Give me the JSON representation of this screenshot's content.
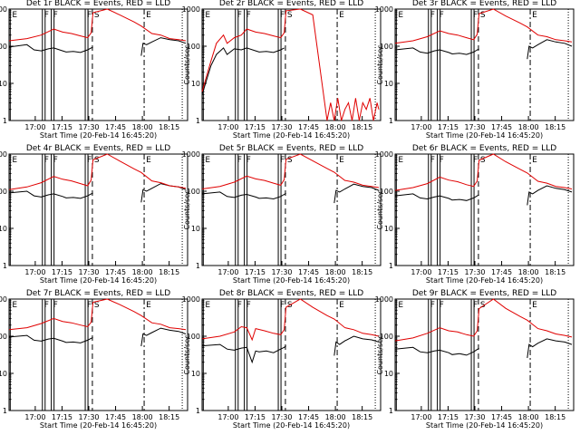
{
  "chart_data": {
    "type": "line",
    "shared": {
      "xlabel": "Start Time (20-Feb-14 16:45:20)",
      "ylabel": "Counts/sec",
      "yscale": "log",
      "ylim": [
        1,
        1000
      ],
      "y_tick_labels": [
        "1",
        "10",
        "100",
        "1000"
      ],
      "x_tick_labels": [
        "17:00",
        "17:15",
        "17:30",
        "17:45",
        "18:00",
        "18:15"
      ],
      "xlim_minutes_after_start": [
        0,
        100
      ],
      "x_tick_minutes_after_start": [
        14.67,
        29.67,
        44.67,
        59.67,
        74.67,
        89.67
      ],
      "series_colors": {
        "events": "#000000",
        "lld": "#e00000"
      },
      "markers": [
        {
          "label": "E",
          "time": "16:46"
        },
        {
          "label": "F",
          "time": "17:04"
        },
        {
          "label": "F",
          "time": "17:09"
        },
        {
          "label": "F",
          "time": "17:28"
        },
        {
          "label": "S",
          "time": "17:32"
        },
        {
          "label": "E",
          "time": "18:01"
        }
      ]
    },
    "panels": [
      {
        "title": "Det 1r BLACK = Events, RED = LLD",
        "series": [
          {
            "name": "Events",
            "color": "#000000",
            "x": [
              0,
              10,
              14,
              18,
              22,
              25,
              30,
              32,
              36,
              40,
              44,
              46,
              47,
              62,
              74,
              75,
              77,
              80,
              85,
              90,
              95,
              99
            ],
            "y": [
              95,
              110,
              80,
              75,
              85,
              90,
              75,
              70,
              72,
              68,
              80,
              90,
              95,
              null,
              55,
              120,
              110,
              130,
              170,
              150,
              140,
              120
            ]
          },
          {
            "name": "LLD",
            "color": "#e00000",
            "x": [
              0,
              10,
              18,
              25,
              30,
              35,
              40,
              44,
              46,
              47,
              55,
              62,
              70,
              74,
              80,
              85,
              90,
              95,
              99
            ],
            "y": [
              140,
              160,
              200,
              290,
              240,
              220,
              190,
              170,
              230,
              800,
              1000,
              700,
              450,
              350,
              220,
              200,
              160,
              150,
              140
            ]
          }
        ]
      },
      {
        "title": "Det 2r BLACK = Events, RED = LLD",
        "series": [
          {
            "name": "Events",
            "color": "#000000",
            "x": [
              0,
              5,
              8,
              12,
              14,
              18,
              22,
              25,
              30,
              32,
              36,
              40,
              44,
              46
            ],
            "y": [
              5,
              30,
              60,
              90,
              60,
              85,
              80,
              90,
              75,
              70,
              72,
              68,
              80,
              90
            ]
          },
          {
            "name": "LLD",
            "color": "#e00000",
            "x": [
              0,
              5,
              8,
              12,
              14,
              18,
              22,
              25,
              30,
              35,
              40,
              44,
              46,
              47,
              55,
              62,
              70,
              72,
              74,
              76,
              78,
              80,
              82,
              84,
              86,
              88,
              90,
              92,
              94,
              96,
              98,
              99
            ],
            "y": [
              6,
              40,
              120,
              200,
              120,
              170,
              200,
              290,
              240,
              220,
              190,
              170,
              230,
              900,
              1000,
              700,
              1,
              3,
              1,
              4,
              1,
              2,
              3,
              1,
              4,
              1,
              3,
              2,
              4,
              1,
              3,
              2
            ]
          }
        ]
      },
      {
        "title": "Det 3r BLACK = Events, RED = LLD",
        "series": [
          {
            "name": "Events",
            "color": "#000000",
            "x": [
              0,
              10,
              14,
              18,
              22,
              25,
              30,
              32,
              36,
              40,
              44,
              46,
              47,
              62,
              74,
              75,
              77,
              80,
              85,
              90,
              95,
              99
            ],
            "y": [
              80,
              90,
              70,
              65,
              75,
              80,
              68,
              62,
              65,
              60,
              70,
              80,
              85,
              null,
              45,
              100,
              90,
              110,
              150,
              130,
              120,
              100
            ]
          },
          {
            "name": "LLD",
            "color": "#e00000",
            "x": [
              0,
              10,
              18,
              25,
              30,
              35,
              40,
              44,
              46,
              47,
              55,
              62,
              70,
              74,
              80,
              85,
              90,
              95,
              99
            ],
            "y": [
              120,
              140,
              180,
              260,
              220,
              200,
              170,
              150,
              210,
              750,
              1000,
              650,
              420,
              330,
              200,
              180,
              150,
              140,
              130
            ]
          }
        ]
      },
      {
        "title": "Det 4r BLACK = Events, RED = LLD",
        "series": [
          {
            "name": "Events",
            "color": "#000000",
            "x": [
              0,
              10,
              14,
              18,
              22,
              25,
              30,
              32,
              36,
              40,
              44,
              46,
              47,
              62,
              74,
              75,
              77,
              80,
              85,
              90,
              95,
              99
            ],
            "y": [
              90,
              100,
              75,
              70,
              80,
              85,
              72,
              66,
              68,
              64,
              75,
              85,
              90,
              null,
              50,
              110,
              100,
              120,
              160,
              140,
              130,
              110
            ]
          },
          {
            "name": "LLD",
            "color": "#e00000",
            "x": [
              0,
              10,
              18,
              25,
              30,
              35,
              40,
              44,
              46,
              47,
              55,
              62,
              70,
              74,
              80,
              85,
              90,
              95,
              99
            ],
            "y": [
              110,
              130,
              170,
              250,
              210,
              190,
              160,
              140,
              200,
              700,
              1000,
              650,
              400,
              320,
              190,
              170,
              140,
              130,
              120
            ]
          }
        ]
      },
      {
        "title": "Det 5r BLACK = Events, RED = LLD",
        "series": [
          {
            "name": "Events",
            "color": "#000000",
            "x": [
              0,
              10,
              14,
              18,
              22,
              25,
              30,
              32,
              36,
              40,
              44,
              46,
              47,
              62,
              74,
              75,
              77,
              80,
              85,
              90,
              95,
              99
            ],
            "y": [
              85,
              95,
              72,
              68,
              78,
              82,
              70,
              64,
              66,
              62,
              72,
              82,
              88,
              null,
              48,
              105,
              95,
              115,
              155,
              135,
              125,
              105
            ]
          },
          {
            "name": "LLD",
            "color": "#e00000",
            "x": [
              0,
              10,
              18,
              25,
              30,
              35,
              40,
              44,
              46,
              47,
              55,
              62,
              70,
              74,
              80,
              85,
              90,
              95,
              99
            ],
            "y": [
              115,
              135,
              175,
              255,
              215,
              195,
              165,
              145,
              205,
              720,
              1000,
              660,
              410,
              325,
              195,
              175,
              145,
              135,
              125
            ]
          }
        ]
      },
      {
        "title": "Det 6r BLACK = Events, RED = LLD",
        "series": [
          {
            "name": "Events",
            "color": "#000000",
            "x": [
              0,
              10,
              14,
              18,
              22,
              25,
              30,
              32,
              36,
              40,
              44,
              46,
              47,
              62,
              74,
              75,
              77,
              80,
              85,
              90,
              95,
              99
            ],
            "y": [
              75,
              85,
              66,
              62,
              70,
              75,
              64,
              58,
              60,
              56,
              66,
              75,
              80,
              null,
              42,
              95,
              85,
              105,
              140,
              120,
              110,
              95
            ]
          },
          {
            "name": "LLD",
            "color": "#e00000",
            "x": [
              0,
              10,
              18,
              25,
              30,
              35,
              40,
              44,
              46,
              47,
              55,
              62,
              70,
              74,
              80,
              85,
              90,
              95,
              99
            ],
            "y": [
              105,
              125,
              160,
              240,
              200,
              180,
              150,
              135,
              190,
              680,
              1000,
              620,
              390,
              310,
              185,
              165,
              135,
              125,
              115
            ]
          }
        ]
      },
      {
        "title": "Det 7r BLACK = Events, RED = LLD",
        "series": [
          {
            "name": "Events",
            "color": "#000000",
            "x": [
              0,
              10,
              14,
              18,
              22,
              25,
              30,
              32,
              36,
              40,
              44,
              46,
              47,
              62,
              74,
              75,
              77,
              80,
              85,
              90,
              95,
              99
            ],
            "y": [
              95,
              105,
              78,
              74,
              84,
              88,
              74,
              68,
              70,
              66,
              78,
              88,
              92,
              null,
              54,
              115,
              105,
              125,
              165,
              145,
              135,
              115
            ]
          },
          {
            "name": "LLD",
            "color": "#e00000",
            "x": [
              0,
              10,
              18,
              25,
              30,
              35,
              40,
              44,
              46,
              47,
              55,
              62,
              70,
              74,
              80,
              85,
              90,
              95,
              99
            ],
            "y": [
              150,
              170,
              220,
              300,
              250,
              230,
              200,
              180,
              240,
              820,
              1000,
              710,
              460,
              360,
              230,
              210,
              170,
              160,
              150
            ]
          }
        ]
      },
      {
        "title": "Det 8r BLACK = Events, RED = LLD",
        "series": [
          {
            "name": "Events",
            "color": "#000000",
            "x": [
              0,
              10,
              14,
              18,
              22,
              25,
              28,
              30,
              32,
              36,
              40,
              44,
              46,
              47,
              62,
              74,
              75,
              77,
              80,
              85,
              90,
              95,
              99
            ],
            "y": [
              55,
              60,
              45,
              42,
              48,
              50,
              20,
              40,
              38,
              40,
              36,
              45,
              50,
              55,
              null,
              30,
              70,
              60,
              75,
              100,
              85,
              80,
              70
            ]
          },
          {
            "name": "LLD",
            "color": "#e00000",
            "x": [
              0,
              10,
              18,
              22,
              25,
              28,
              30,
              35,
              40,
              44,
              46,
              47,
              55,
              62,
              70,
              74,
              80,
              85,
              90,
              95,
              99
            ],
            "y": [
              85,
              100,
              130,
              180,
              170,
              80,
              160,
              140,
              120,
              110,
              150,
              600,
              1000,
              600,
              360,
              290,
              170,
              150,
              120,
              110,
              100
            ]
          }
        ]
      },
      {
        "title": "Det 9r BLACK = Events, RED = LLD",
        "series": [
          {
            "name": "Events",
            "color": "#000000",
            "x": [
              0,
              10,
              14,
              18,
              22,
              25,
              30,
              32,
              36,
              40,
              44,
              46,
              47,
              62,
              74,
              75,
              77,
              80,
              85,
              90,
              95,
              99
            ],
            "y": [
              45,
              50,
              38,
              36,
              40,
              42,
              36,
              32,
              34,
              31,
              38,
              44,
              48,
              null,
              26,
              60,
              52,
              65,
              85,
              75,
              70,
              60
            ]
          },
          {
            "name": "LLD",
            "color": "#e00000",
            "x": [
              0,
              10,
              18,
              25,
              30,
              35,
              40,
              44,
              46,
              47,
              55,
              62,
              70,
              74,
              80,
              85,
              90,
              95,
              99
            ],
            "y": [
              75,
              90,
              120,
              170,
              140,
              130,
              110,
              100,
              140,
              550,
              1000,
              560,
              340,
              270,
              160,
              140,
              115,
              105,
              95
            ]
          }
        ]
      }
    ]
  }
}
